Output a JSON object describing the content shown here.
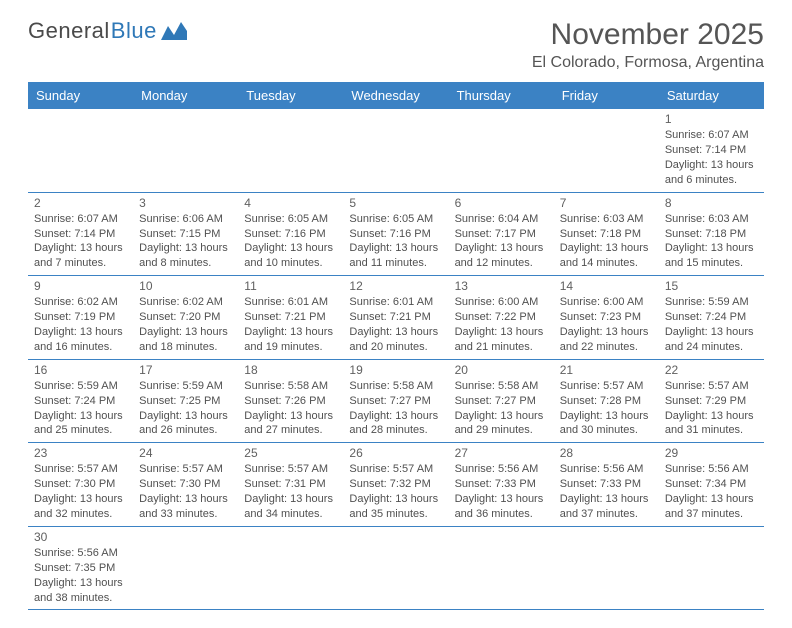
{
  "logo": {
    "part1": "General",
    "part2": "Blue"
  },
  "title": "November 2025",
  "location": "El Colorado, Formosa, Argentina",
  "colors": {
    "header_bg": "#3b82c4",
    "header_text": "#ffffff",
    "border": "#3b82c4",
    "text": "#505050",
    "title_text": "#555555",
    "logo_gray": "#4a4a4a",
    "logo_blue": "#2f78b7",
    "background": "#ffffff"
  },
  "typography": {
    "title_fontsize": 30,
    "location_fontsize": 16,
    "dayhead_fontsize": 13,
    "cell_fontsize": 11,
    "font_family": "Arial"
  },
  "day_headers": [
    "Sunday",
    "Monday",
    "Tuesday",
    "Wednesday",
    "Thursday",
    "Friday",
    "Saturday"
  ],
  "weeks": [
    [
      null,
      null,
      null,
      null,
      null,
      null,
      {
        "n": "1",
        "sr": "Sunrise: 6:07 AM",
        "ss": "Sunset: 7:14 PM",
        "d1": "Daylight: 13 hours",
        "d2": "and 6 minutes."
      }
    ],
    [
      {
        "n": "2",
        "sr": "Sunrise: 6:07 AM",
        "ss": "Sunset: 7:14 PM",
        "d1": "Daylight: 13 hours",
        "d2": "and 7 minutes."
      },
      {
        "n": "3",
        "sr": "Sunrise: 6:06 AM",
        "ss": "Sunset: 7:15 PM",
        "d1": "Daylight: 13 hours",
        "d2": "and 8 minutes."
      },
      {
        "n": "4",
        "sr": "Sunrise: 6:05 AM",
        "ss": "Sunset: 7:16 PM",
        "d1": "Daylight: 13 hours",
        "d2": "and 10 minutes."
      },
      {
        "n": "5",
        "sr": "Sunrise: 6:05 AM",
        "ss": "Sunset: 7:16 PM",
        "d1": "Daylight: 13 hours",
        "d2": "and 11 minutes."
      },
      {
        "n": "6",
        "sr": "Sunrise: 6:04 AM",
        "ss": "Sunset: 7:17 PM",
        "d1": "Daylight: 13 hours",
        "d2": "and 12 minutes."
      },
      {
        "n": "7",
        "sr": "Sunrise: 6:03 AM",
        "ss": "Sunset: 7:18 PM",
        "d1": "Daylight: 13 hours",
        "d2": "and 14 minutes."
      },
      {
        "n": "8",
        "sr": "Sunrise: 6:03 AM",
        "ss": "Sunset: 7:18 PM",
        "d1": "Daylight: 13 hours",
        "d2": "and 15 minutes."
      }
    ],
    [
      {
        "n": "9",
        "sr": "Sunrise: 6:02 AM",
        "ss": "Sunset: 7:19 PM",
        "d1": "Daylight: 13 hours",
        "d2": "and 16 minutes."
      },
      {
        "n": "10",
        "sr": "Sunrise: 6:02 AM",
        "ss": "Sunset: 7:20 PM",
        "d1": "Daylight: 13 hours",
        "d2": "and 18 minutes."
      },
      {
        "n": "11",
        "sr": "Sunrise: 6:01 AM",
        "ss": "Sunset: 7:21 PM",
        "d1": "Daylight: 13 hours",
        "d2": "and 19 minutes."
      },
      {
        "n": "12",
        "sr": "Sunrise: 6:01 AM",
        "ss": "Sunset: 7:21 PM",
        "d1": "Daylight: 13 hours",
        "d2": "and 20 minutes."
      },
      {
        "n": "13",
        "sr": "Sunrise: 6:00 AM",
        "ss": "Sunset: 7:22 PM",
        "d1": "Daylight: 13 hours",
        "d2": "and 21 minutes."
      },
      {
        "n": "14",
        "sr": "Sunrise: 6:00 AM",
        "ss": "Sunset: 7:23 PM",
        "d1": "Daylight: 13 hours",
        "d2": "and 22 minutes."
      },
      {
        "n": "15",
        "sr": "Sunrise: 5:59 AM",
        "ss": "Sunset: 7:24 PM",
        "d1": "Daylight: 13 hours",
        "d2": "and 24 minutes."
      }
    ],
    [
      {
        "n": "16",
        "sr": "Sunrise: 5:59 AM",
        "ss": "Sunset: 7:24 PM",
        "d1": "Daylight: 13 hours",
        "d2": "and 25 minutes."
      },
      {
        "n": "17",
        "sr": "Sunrise: 5:59 AM",
        "ss": "Sunset: 7:25 PM",
        "d1": "Daylight: 13 hours",
        "d2": "and 26 minutes."
      },
      {
        "n": "18",
        "sr": "Sunrise: 5:58 AM",
        "ss": "Sunset: 7:26 PM",
        "d1": "Daylight: 13 hours",
        "d2": "and 27 minutes."
      },
      {
        "n": "19",
        "sr": "Sunrise: 5:58 AM",
        "ss": "Sunset: 7:27 PM",
        "d1": "Daylight: 13 hours",
        "d2": "and 28 minutes."
      },
      {
        "n": "20",
        "sr": "Sunrise: 5:58 AM",
        "ss": "Sunset: 7:27 PM",
        "d1": "Daylight: 13 hours",
        "d2": "and 29 minutes."
      },
      {
        "n": "21",
        "sr": "Sunrise: 5:57 AM",
        "ss": "Sunset: 7:28 PM",
        "d1": "Daylight: 13 hours",
        "d2": "and 30 minutes."
      },
      {
        "n": "22",
        "sr": "Sunrise: 5:57 AM",
        "ss": "Sunset: 7:29 PM",
        "d1": "Daylight: 13 hours",
        "d2": "and 31 minutes."
      }
    ],
    [
      {
        "n": "23",
        "sr": "Sunrise: 5:57 AM",
        "ss": "Sunset: 7:30 PM",
        "d1": "Daylight: 13 hours",
        "d2": "and 32 minutes."
      },
      {
        "n": "24",
        "sr": "Sunrise: 5:57 AM",
        "ss": "Sunset: 7:30 PM",
        "d1": "Daylight: 13 hours",
        "d2": "and 33 minutes."
      },
      {
        "n": "25",
        "sr": "Sunrise: 5:57 AM",
        "ss": "Sunset: 7:31 PM",
        "d1": "Daylight: 13 hours",
        "d2": "and 34 minutes."
      },
      {
        "n": "26",
        "sr": "Sunrise: 5:57 AM",
        "ss": "Sunset: 7:32 PM",
        "d1": "Daylight: 13 hours",
        "d2": "and 35 minutes."
      },
      {
        "n": "27",
        "sr": "Sunrise: 5:56 AM",
        "ss": "Sunset: 7:33 PM",
        "d1": "Daylight: 13 hours",
        "d2": "and 36 minutes."
      },
      {
        "n": "28",
        "sr": "Sunrise: 5:56 AM",
        "ss": "Sunset: 7:33 PM",
        "d1": "Daylight: 13 hours",
        "d2": "and 37 minutes."
      },
      {
        "n": "29",
        "sr": "Sunrise: 5:56 AM",
        "ss": "Sunset: 7:34 PM",
        "d1": "Daylight: 13 hours",
        "d2": "and 37 minutes."
      }
    ],
    [
      {
        "n": "30",
        "sr": "Sunrise: 5:56 AM",
        "ss": "Sunset: 7:35 PM",
        "d1": "Daylight: 13 hours",
        "d2": "and 38 minutes."
      },
      null,
      null,
      null,
      null,
      null,
      null
    ]
  ]
}
